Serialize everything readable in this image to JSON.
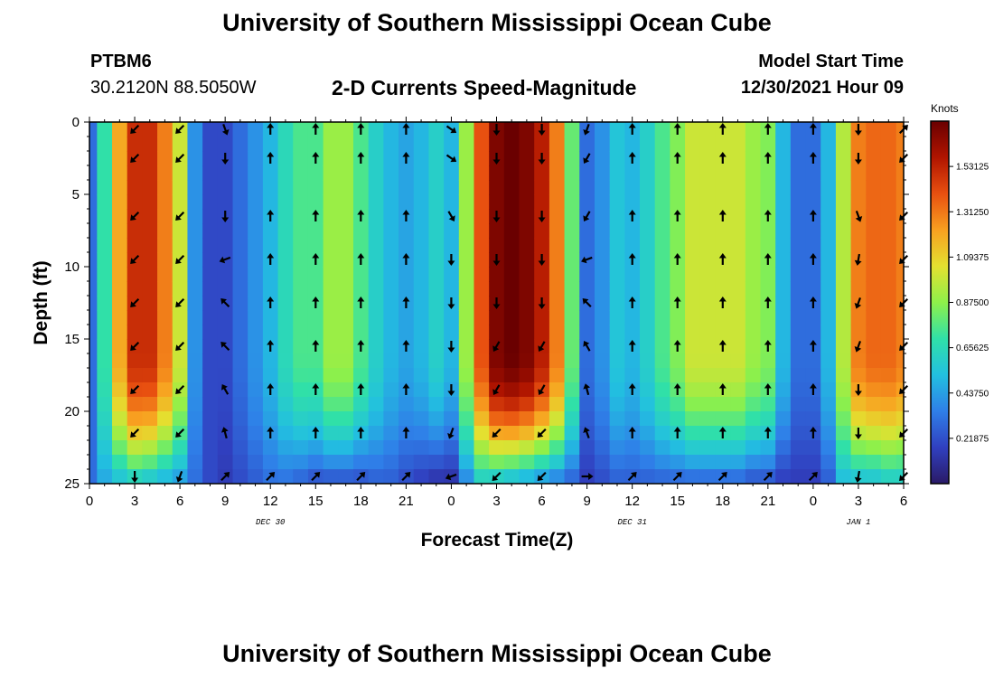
{
  "header": {
    "title": "University of Southern Mississippi Ocean Cube",
    "station": "PTBM6",
    "coordinates": "30.2120N  88.5050W",
    "subtitle": "2-D Currents Speed-Magnitude",
    "model_start_label": "Model Start Time",
    "model_start_value": "12/30/2021 Hour 09"
  },
  "footer": {
    "title": "University of Southern Mississippi Ocean Cube"
  },
  "colors": {
    "arrow": "#000000",
    "palette": [
      "#2a1a66",
      "#3040c0",
      "#2f7fe8",
      "#22c0e0",
      "#30e0a8",
      "#8ef04a",
      "#e4e030",
      "#f8a020",
      "#e85010",
      "#b01400",
      "#6a0000"
    ]
  },
  "chart_data": {
    "type": "heatmap",
    "title": "2-D Currents Speed-Magnitude",
    "xlabel": "Forecast Time(Z)",
    "ylabel": "Depth (ft)",
    "x_ticks": [
      "0",
      "3",
      "6",
      "9",
      "12",
      "15",
      "18",
      "21",
      "0",
      "3",
      "6",
      "9",
      "12",
      "15",
      "18",
      "21",
      "0",
      "3",
      "6"
    ],
    "date_labels": [
      {
        "label": "DEC 30",
        "hour": 12
      },
      {
        "label": "DEC 31",
        "hour": 36
      },
      {
        "label": "JAN 1",
        "hour": 51
      }
    ],
    "y_ticks": [
      "0",
      "5",
      "10",
      "15",
      "20",
      "25"
    ],
    "xlim": [
      0,
      54
    ],
    "ylim": [
      0,
      25
    ],
    "colorbar": {
      "title": "Knots",
      "range": [
        0,
        1.75
      ],
      "tick_values": [
        0.21875,
        0.4375,
        0.65625,
        0.875,
        1.09375,
        1.3125,
        1.53125
      ],
      "tick_labels": [
        "0.21875",
        "0.43750",
        "0.65625",
        "0.87500",
        "1.09375",
        "1.31250",
        "1.53125"
      ]
    },
    "speed_profile": {
      "hours": [
        0,
        1,
        2,
        3,
        4,
        5,
        6,
        7,
        8,
        9,
        10,
        11,
        12,
        13,
        14,
        15,
        16,
        17,
        18,
        19,
        20,
        21,
        22,
        23,
        24,
        25,
        26,
        27,
        28,
        29,
        30,
        31,
        32,
        33,
        34,
        35,
        36,
        37,
        38,
        39,
        40,
        41,
        42,
        43,
        44,
        45,
        46,
        47,
        48,
        49,
        50,
        51,
        52,
        53,
        54
      ],
      "surface_speed_knots": [
        0.3,
        0.7,
        1.2,
        1.5,
        1.5,
        1.3,
        1.0,
        0.4,
        0.2,
        0.2,
        0.3,
        0.4,
        0.5,
        0.65,
        0.75,
        0.75,
        0.9,
        0.9,
        0.75,
        0.6,
        0.5,
        0.45,
        0.5,
        0.6,
        0.5,
        0.9,
        1.4,
        1.7,
        1.75,
        1.7,
        1.55,
        1.3,
        0.8,
        0.3,
        0.4,
        0.55,
        0.5,
        0.6,
        0.75,
        0.85,
        1.0,
        1.0,
        1.0,
        1.0,
        0.9,
        0.85,
        0.5,
        0.3,
        0.3,
        0.5,
        0.95,
        1.3,
        1.35,
        1.35,
        1.3
      ],
      "bottom_speed_knots": [
        0.3,
        0.45,
        0.5,
        0.55,
        0.5,
        0.45,
        0.4,
        0.3,
        0.2,
        0.15,
        0.2,
        0.25,
        0.3,
        0.3,
        0.25,
        0.2,
        0.2,
        0.2,
        0.2,
        0.25,
        0.25,
        0.2,
        0.15,
        0.1,
        0.1,
        0.35,
        0.55,
        0.5,
        0.45,
        0.4,
        0.35,
        0.3,
        0.25,
        0.15,
        0.2,
        0.25,
        0.25,
        0.25,
        0.25,
        0.25,
        0.25,
        0.25,
        0.25,
        0.25,
        0.2,
        0.2,
        0.15,
        0.15,
        0.15,
        0.25,
        0.5,
        0.5,
        0.5,
        0.55,
        0.55
      ]
    },
    "vector_grid": {
      "hours": [
        3,
        6,
        9,
        12,
        15,
        18,
        21,
        24,
        27,
        30,
        33,
        36,
        39,
        42,
        45,
        48,
        51,
        54
      ],
      "depths_ft": [
        0.5,
        2.5,
        6.5,
        9.5,
        12.5,
        15.5,
        18.5,
        21.5,
        24.5
      ],
      "direction_deg": [
        [
          225,
          225,
          160,
          0,
          0,
          0,
          0,
          125,
          180,
          180,
          200,
          0,
          0,
          0,
          0,
          0,
          180,
          45
        ],
        [
          225,
          225,
          180,
          0,
          0,
          0,
          0,
          125,
          180,
          180,
          210,
          0,
          0,
          0,
          0,
          0,
          180,
          225
        ],
        [
          225,
          225,
          180,
          0,
          0,
          0,
          0,
          150,
          180,
          180,
          210,
          0,
          0,
          0,
          0,
          0,
          160,
          225
        ],
        [
          225,
          225,
          250,
          0,
          0,
          0,
          0,
          180,
          180,
          180,
          250,
          0,
          0,
          0,
          0,
          0,
          190,
          225
        ],
        [
          225,
          225,
          315,
          0,
          0,
          0,
          0,
          180,
          180,
          180,
          315,
          0,
          0,
          0,
          0,
          0,
          200,
          225
        ],
        [
          225,
          225,
          315,
          0,
          0,
          0,
          0,
          180,
          210,
          210,
          330,
          0,
          0,
          0,
          0,
          0,
          200,
          225
        ],
        [
          225,
          225,
          330,
          0,
          0,
          0,
          0,
          180,
          210,
          210,
          345,
          0,
          0,
          0,
          0,
          0,
          180,
          225
        ],
        [
          225,
          225,
          345,
          0,
          0,
          0,
          0,
          200,
          225,
          225,
          340,
          0,
          0,
          0,
          0,
          0,
          180,
          225
        ],
        [
          180,
          200,
          45,
          45,
          45,
          45,
          45,
          250,
          225,
          225,
          90,
          45,
          45,
          45,
          45,
          45,
          190,
          225
        ]
      ]
    }
  }
}
